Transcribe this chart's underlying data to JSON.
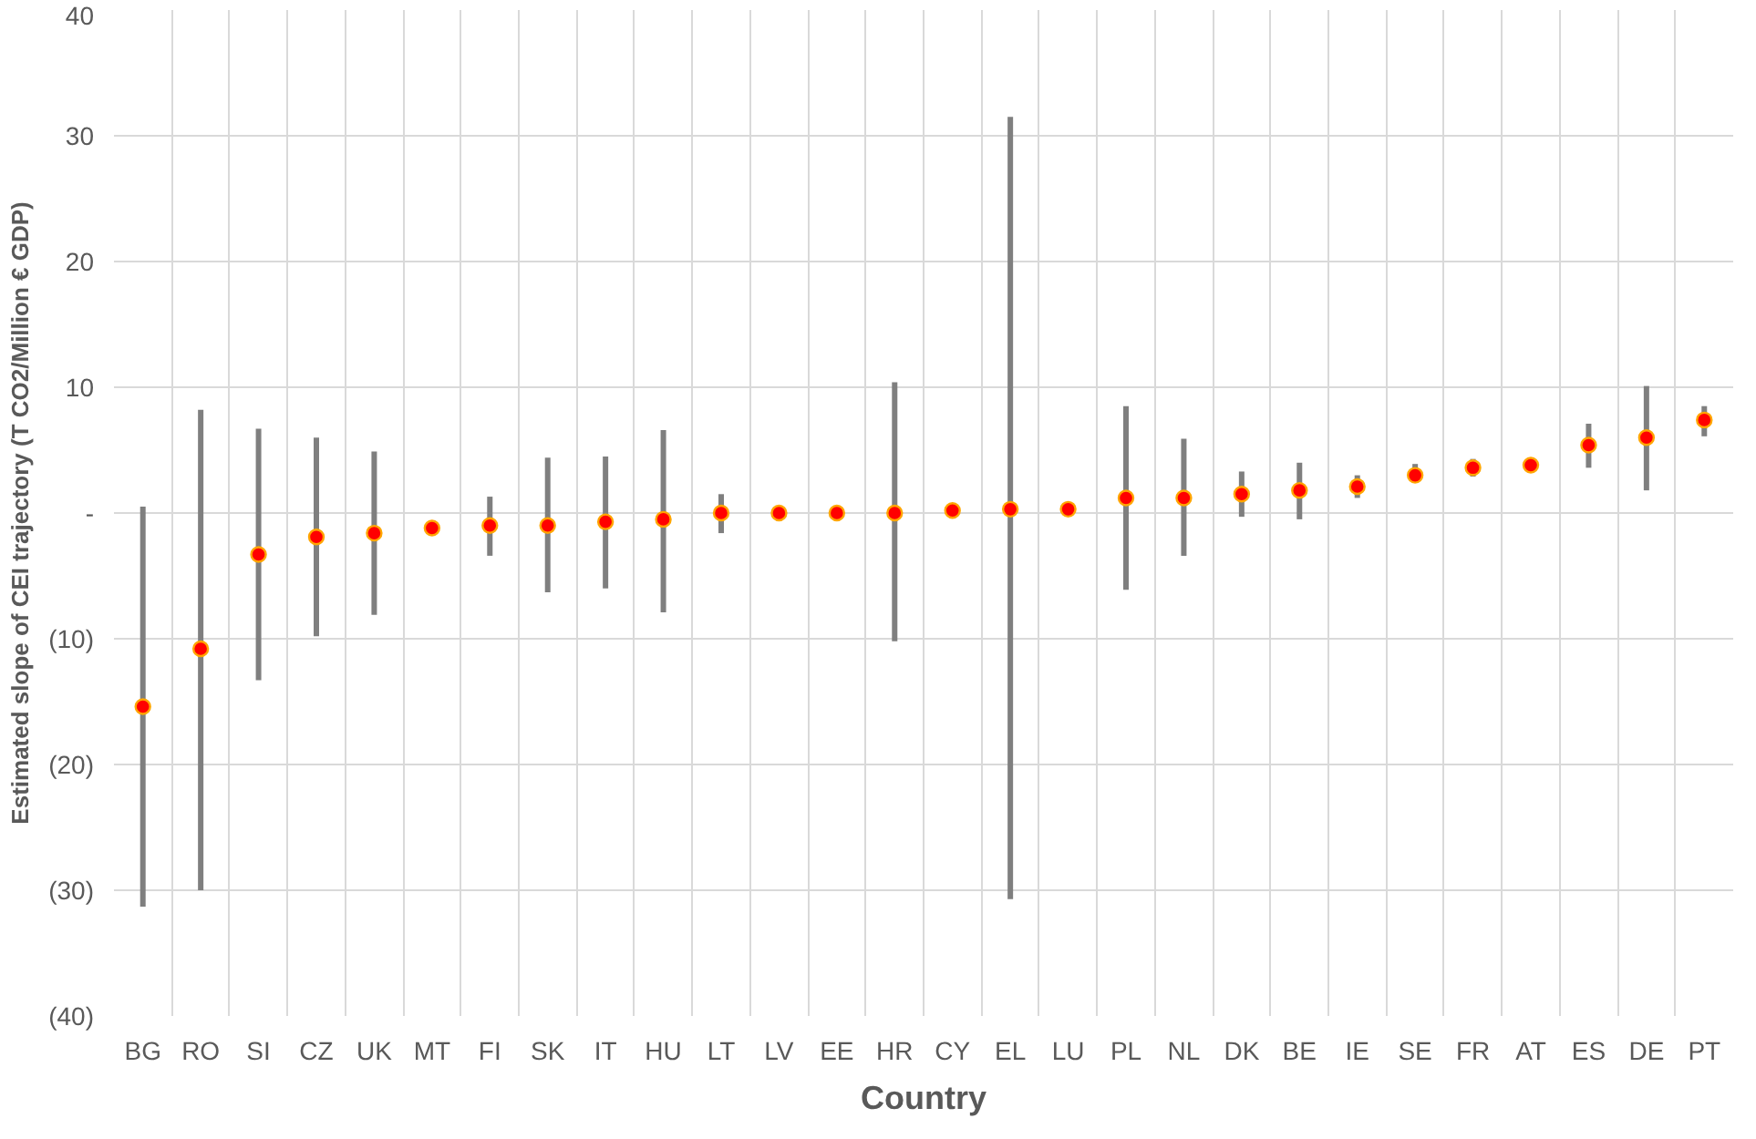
{
  "chart_data": {
    "type": "scatter",
    "xlabel": "Country",
    "ylabel": "Estimated slope of CEI trajectory (T CO2/Million € GDP)",
    "categories": [
      "BG",
      "RO",
      "SI",
      "CZ",
      "UK",
      "MT",
      "FI",
      "SK",
      "IT",
      "HU",
      "LT",
      "LV",
      "EE",
      "HR",
      "CY",
      "EL",
      "LU",
      "PL",
      "NL",
      "DK",
      "BE",
      "IE",
      "SE",
      "FR",
      "AT",
      "ES",
      "DE",
      "PT"
    ],
    "series": [
      {
        "color": "#ff0000",
        "values": [
          -15.4,
          -10.8,
          -3.3,
          -1.9,
          -1.6,
          -1.2,
          -1.0,
          -1.0,
          -0.7,
          -0.5,
          0.0,
          0.0,
          0.0,
          0.0,
          0.2,
          0.3,
          0.3,
          1.2,
          1.2,
          1.5,
          1.8,
          2.1,
          3.0,
          3.6,
          3.8,
          5.4,
          6.0,
          7.4
        ],
        "errors": [
          [
            -31.3,
            0.5
          ],
          [
            -30,
            8.2
          ],
          [
            -13.3,
            6.7
          ],
          [
            -9.8,
            6
          ],
          [
            -8.1,
            4.9
          ],
          null,
          [
            -3.4,
            1.3
          ],
          [
            -6.3,
            4.4
          ],
          [
            -6,
            4.5
          ],
          [
            -7.9,
            6.6
          ],
          [
            -1.6,
            1.5
          ],
          null,
          null,
          [
            -10.2,
            10.4
          ],
          null,
          [
            -30.7,
            31.5
          ],
          null,
          [
            -6.1,
            8.5
          ],
          [
            -3.4,
            5.9
          ],
          [
            -0.3,
            3.3
          ],
          [
            -0.5,
            4
          ],
          [
            1.2,
            3.0
          ],
          [
            2.4,
            3.9
          ],
          [
            2.9,
            4.3
          ],
          null,
          [
            3.6,
            7.1
          ],
          [
            1.8,
            10.1
          ],
          [
            6.1,
            8.5
          ]
        ]
      }
    ],
    "ylim": [
      -40,
      40
    ],
    "yticks": [
      {
        "value": -40,
        "label": "(40)"
      },
      {
        "value": -30,
        "label": "(30)"
      },
      {
        "value": -20,
        "label": "(20)"
      },
      {
        "value": -10,
        "label": "(10)"
      },
      {
        "value": 0,
        "label": "-"
      },
      10,
      20,
      30,
      40
    ],
    "grid": true,
    "marker": "circle"
  }
}
